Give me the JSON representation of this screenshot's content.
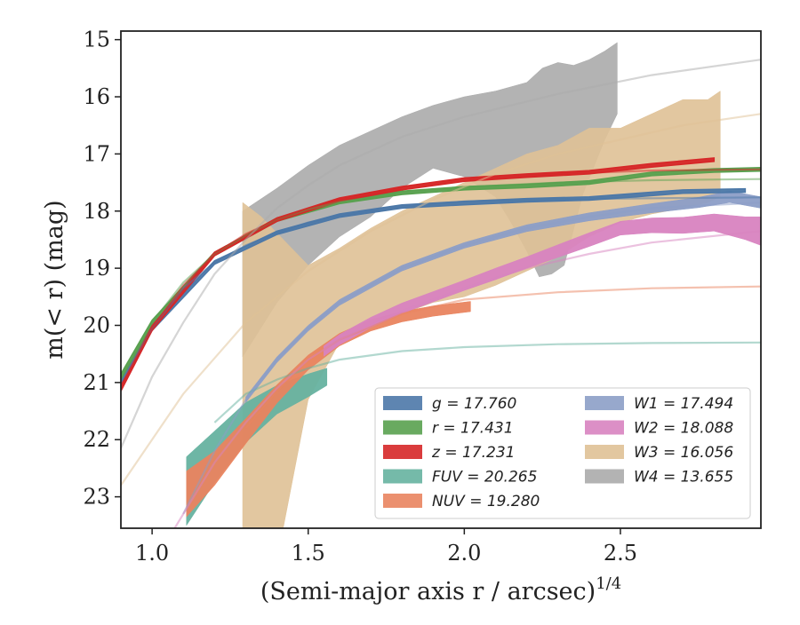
{
  "chart_data": {
    "type": "area",
    "title": "",
    "xlabel": "(Semi-major axis r / arcsec)",
    "xlabel_superscript": "1/4",
    "ylabel": "m(< r) (mag)",
    "xlim": [
      0.9,
      2.95
    ],
    "ylim": [
      23.55,
      14.85
    ],
    "y_inverted": true,
    "grid": false,
    "legend_position": "lower-right",
    "x_ticks": [
      1.0,
      1.5,
      2.0,
      2.5
    ],
    "x_tick_labels": [
      "1.0",
      "1.5",
      "2.0",
      "2.5"
    ],
    "y_ticks": [
      15,
      16,
      17,
      18,
      19,
      20,
      21,
      22,
      23
    ],
    "y_tick_labels": [
      "15",
      "16",
      "17",
      "18",
      "19",
      "20",
      "21",
      "22",
      "23"
    ],
    "series": [
      {
        "name": "g",
        "legend_label": "g = 17.760",
        "color": "#4c78a8",
        "model_x": [
          0.9,
          1.0,
          1.1,
          1.2,
          1.3,
          1.4,
          1.5,
          1.6,
          1.8,
          2.0,
          2.2,
          2.5,
          2.95
        ],
        "model_y": [
          21.0,
          20.05,
          19.35,
          18.9,
          18.6,
          18.38,
          18.2,
          18.08,
          17.92,
          17.83,
          17.8,
          17.78,
          17.76
        ],
        "band_x": [
          0.9,
          1.0,
          1.2,
          1.4,
          1.6,
          1.8,
          2.0,
          2.2,
          2.4,
          2.55,
          2.7,
          2.9
        ],
        "band_y": [
          21.0,
          20.05,
          18.9,
          18.38,
          18.08,
          17.92,
          17.86,
          17.81,
          17.78,
          17.72,
          17.66,
          17.64
        ],
        "band_halfwidth": [
          0.05,
          0.04,
          0.03,
          0.03,
          0.03,
          0.03,
          0.03,
          0.03,
          0.03,
          0.03,
          0.03,
          0.03
        ]
      },
      {
        "name": "r",
        "legend_label": "r = 17.431",
        "color": "#59a14f",
        "model_x": [
          0.9,
          1.0,
          1.1,
          1.2,
          1.3,
          1.4,
          1.5,
          1.6,
          1.8,
          2.0,
          2.3,
          2.6,
          2.95
        ],
        "model_y": [
          20.9,
          19.95,
          19.25,
          18.75,
          18.42,
          18.15,
          17.97,
          17.84,
          17.68,
          17.58,
          17.5,
          17.46,
          17.44
        ],
        "band_x": [
          0.9,
          1.0,
          1.2,
          1.4,
          1.6,
          1.8,
          2.0,
          2.2,
          2.4,
          2.6,
          2.8,
          2.95
        ],
        "band_y": [
          20.9,
          19.95,
          18.75,
          18.15,
          17.84,
          17.68,
          17.6,
          17.56,
          17.5,
          17.35,
          17.29,
          17.27
        ],
        "band_halfwidth": [
          0.05,
          0.04,
          0.03,
          0.03,
          0.03,
          0.03,
          0.03,
          0.03,
          0.03,
          0.03,
          0.03,
          0.03
        ]
      },
      {
        "name": "z",
        "legend_label": "z = 17.231",
        "color": "#d62728",
        "model_x": [
          0.9,
          1.0,
          1.1,
          1.2,
          1.3,
          1.4,
          1.5,
          1.6,
          1.8,
          2.0,
          2.3,
          2.6,
          2.95
        ],
        "model_y": [
          21.1,
          20.05,
          19.3,
          18.75,
          18.4,
          18.15,
          17.95,
          17.8,
          17.6,
          17.45,
          17.35,
          17.29,
          17.27
        ],
        "band_x": [
          0.9,
          1.0,
          1.2,
          1.4,
          1.6,
          1.8,
          2.0,
          2.2,
          2.4,
          2.6,
          2.8
        ],
        "band_y": [
          21.1,
          20.05,
          18.75,
          18.15,
          17.8,
          17.6,
          17.45,
          17.38,
          17.32,
          17.2,
          17.1
        ],
        "band_halfwidth": [
          0.05,
          0.04,
          0.03,
          0.03,
          0.03,
          0.03,
          0.03,
          0.03,
          0.03,
          0.03,
          0.03
        ]
      },
      {
        "name": "FUV",
        "legend_label": "FUV = 20.265",
        "color": "#66b2a0",
        "model_x": [
          1.2,
          1.3,
          1.4,
          1.5,
          1.6,
          1.8,
          2.0,
          2.3,
          2.6,
          2.95
        ],
        "model_y": [
          21.7,
          21.2,
          20.95,
          20.75,
          20.6,
          20.45,
          20.38,
          20.33,
          20.31,
          20.3
        ],
        "band_x": [
          1.11,
          1.2,
          1.3,
          1.4,
          1.5,
          1.56
        ],
        "band_y": [
          22.9,
          22.3,
          21.7,
          21.3,
          21.05,
          20.9
        ],
        "band_halfwidth": [
          0.6,
          0.45,
          0.35,
          0.25,
          0.2,
          0.15
        ]
      },
      {
        "name": "NUV",
        "legend_label": "NUV = 19.280",
        "color": "#e9845f",
        "model_x": [
          1.3,
          1.4,
          1.5,
          1.6,
          1.8,
          2.0,
          2.3,
          2.6,
          2.95
        ],
        "model_y": [
          21.8,
          21.15,
          20.6,
          20.25,
          19.8,
          19.55,
          19.42,
          19.35,
          19.32
        ],
        "band_x": [
          1.11,
          1.2,
          1.3,
          1.4,
          1.5,
          1.6,
          1.7,
          1.8,
          1.9,
          2.02
        ],
        "band_y": [
          22.95,
          22.5,
          21.85,
          21.2,
          20.65,
          20.25,
          20.0,
          19.85,
          19.75,
          19.67
        ],
        "band_halfwidth": [
          0.4,
          0.3,
          0.22,
          0.16,
          0.13,
          0.11,
          0.1,
          0.09,
          0.09,
          0.09
        ]
      },
      {
        "name": "W1",
        "legend_label": "W1 = 17.494",
        "color": "#8c9ec7",
        "model_x": [
          1.1,
          1.2,
          1.3,
          1.4,
          1.5,
          1.6,
          1.8,
          2.0,
          2.2,
          2.4,
          2.6,
          2.95
        ],
        "model_y": [
          23.3,
          22.2,
          21.3,
          20.6,
          20.05,
          19.6,
          19.0,
          18.6,
          18.3,
          18.1,
          17.95,
          17.85
        ],
        "band_x": [
          1.3,
          1.4,
          1.5,
          1.6,
          1.8,
          2.0,
          2.2,
          2.4,
          2.6,
          2.75,
          2.85,
          2.95
        ],
        "band_y": [
          21.3,
          20.6,
          20.05,
          19.6,
          19.0,
          18.6,
          18.3,
          18.1,
          17.95,
          17.85,
          17.75,
          17.85
        ],
        "band_halfwidth": [
          0.05,
          0.05,
          0.05,
          0.05,
          0.05,
          0.05,
          0.06,
          0.07,
          0.08,
          0.09,
          0.1,
          0.1
        ]
      },
      {
        "name": "W2",
        "legend_label": "W2 = 18.088",
        "color": "#d883c0",
        "model_x": [
          1.0,
          1.1,
          1.2,
          1.3,
          1.4,
          1.5,
          1.6,
          1.8,
          2.0,
          2.2,
          2.4,
          2.6,
          2.95
        ],
        "model_y": [
          24.2,
          23.3,
          22.4,
          21.7,
          21.1,
          20.6,
          20.25,
          19.75,
          19.35,
          19.0,
          18.75,
          18.55,
          18.35
        ],
        "band_x": [
          1.55,
          1.6,
          1.7,
          1.8,
          1.9,
          2.0,
          2.1,
          2.2,
          2.3,
          2.4,
          2.5,
          2.6,
          2.7,
          2.8,
          2.9,
          2.95
        ],
        "band_y": [
          20.45,
          20.25,
          19.95,
          19.7,
          19.5,
          19.3,
          19.1,
          18.9,
          18.7,
          18.5,
          18.3,
          18.25,
          18.25,
          18.2,
          18.3,
          18.35
        ],
        "band_halfwidth": [
          0.09,
          0.09,
          0.09,
          0.09,
          0.09,
          0.09,
          0.1,
          0.1,
          0.11,
          0.12,
          0.12,
          0.13,
          0.14,
          0.15,
          0.2,
          0.25
        ]
      },
      {
        "name": "W3",
        "legend_label": "W3 = 16.056",
        "color": "#dfc196",
        "model_x": [
          0.9,
          1.1,
          1.3,
          1.5,
          1.7,
          1.9,
          2.1,
          2.3,
          2.5,
          2.7,
          2.95
        ],
        "model_y": [
          22.8,
          21.2,
          19.95,
          19.05,
          18.35,
          17.8,
          17.35,
          17.0,
          16.75,
          16.5,
          16.3
        ],
        "band_upper_x": [
          1.29,
          1.35,
          1.5,
          1.6,
          1.7,
          1.8,
          1.9,
          2.0,
          2.1,
          2.2,
          2.3,
          2.4,
          2.5,
          2.6,
          2.7,
          2.78,
          2.82
        ],
        "band_upper_y": [
          17.85,
          18.1,
          18.95,
          18.65,
          18.3,
          18.0,
          17.75,
          17.5,
          17.25,
          17.0,
          16.85,
          16.55,
          16.55,
          16.3,
          16.05,
          16.05,
          15.9
        ],
        "band_lower_x": [
          1.29,
          1.35,
          1.42,
          1.5,
          1.6,
          1.7,
          1.8,
          1.9,
          2.0,
          2.1,
          2.2,
          2.3,
          2.4,
          2.5,
          2.6,
          2.7,
          2.78,
          2.82
        ],
        "band_lower_y": [
          23.55,
          24.5,
          23.55,
          21.3,
          20.3,
          19.9,
          19.8,
          19.6,
          19.5,
          19.3,
          19.05,
          18.8,
          18.45,
          18.2,
          18.05,
          17.95,
          17.85,
          17.75
        ]
      },
      {
        "name": "W4",
        "legend_label": "W4 = 13.655",
        "color": "#ababab",
        "model_x": [
          0.9,
          1.0,
          1.1,
          1.2,
          1.3,
          1.4,
          1.5,
          1.6,
          1.8,
          2.0,
          2.3,
          2.6,
          2.95
        ],
        "model_y": [
          22.15,
          20.9,
          19.95,
          19.1,
          18.5,
          17.95,
          17.55,
          17.2,
          16.7,
          16.35,
          15.95,
          15.62,
          15.35
        ],
        "band_upper_x": [
          1.29,
          1.4,
          1.5,
          1.6,
          1.7,
          1.8,
          1.9,
          2.0,
          2.1,
          2.2,
          2.25,
          2.3,
          2.35,
          2.4,
          2.45,
          2.49
        ],
        "band_upper_y": [
          18.0,
          17.6,
          17.2,
          16.85,
          16.6,
          16.35,
          16.15,
          16.0,
          15.9,
          15.75,
          15.5,
          15.4,
          15.45,
          15.35,
          15.2,
          15.05
        ],
        "band_lower_x": [
          1.29,
          1.4,
          1.5,
          1.6,
          1.7,
          1.8,
          1.9,
          2.0,
          2.1,
          2.15,
          2.2,
          2.24,
          2.28,
          2.32,
          2.38,
          2.45,
          2.49
        ],
        "band_lower_y": [
          20.55,
          19.6,
          18.95,
          18.45,
          18.1,
          17.6,
          17.25,
          17.4,
          17.75,
          18.2,
          18.7,
          19.15,
          19.1,
          18.95,
          17.7,
          16.75,
          16.3
        ]
      }
    ]
  }
}
